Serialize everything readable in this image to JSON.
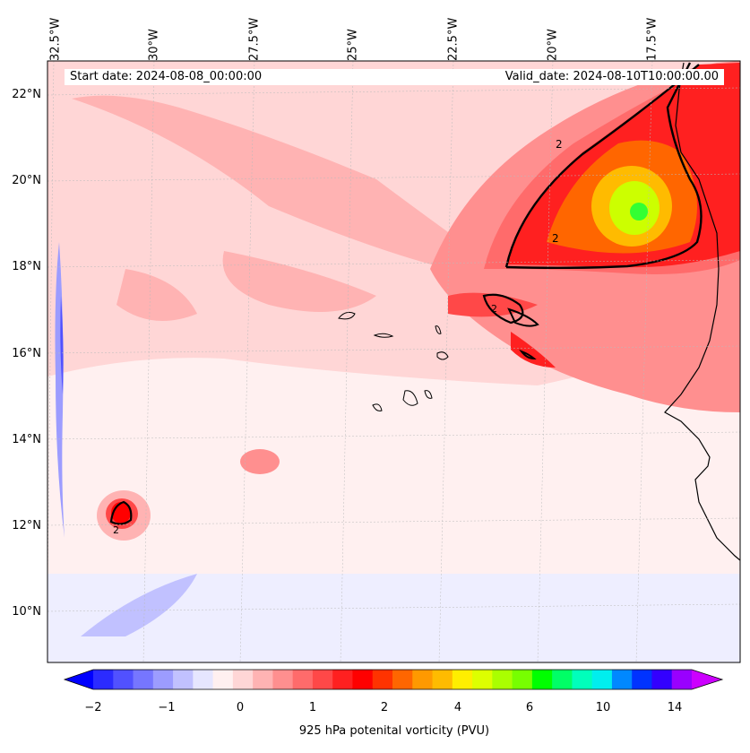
{
  "header": {
    "start_date": "Start date: 2024-08-08_00:00:00",
    "valid_date": "Valid_date: 2024-08-10T10:00:00.00"
  },
  "longitude_labels": [
    "32.5°W",
    "30°W",
    "27.5°W",
    "25°W",
    "22.5°W",
    "20°W",
    "17.5°W"
  ],
  "latitude_labels": [
    "22°N",
    "20°N",
    "18°N",
    "16°N",
    "14°N",
    "12°N",
    "10°N"
  ],
  "contour_labels": [
    "2",
    "2",
    "2",
    "2"
  ],
  "colorbar": {
    "label": "925 hPa potenital vorticity (PVU)",
    "ticks": [
      "−2",
      "−1",
      "0",
      "1",
      "2",
      "4",
      "6",
      "10",
      "14"
    ],
    "colors": [
      "#0000ff",
      "#2b2bff",
      "#5151ff",
      "#7676ff",
      "#9c9cff",
      "#c1c1ff",
      "#e6e6ff",
      "#fff0f0",
      "#ffd6d6",
      "#ffb3b3",
      "#ff8f8f",
      "#ff6b6b",
      "#ff4848",
      "#ff2020",
      "#ff0000",
      "#ff3300",
      "#ff6600",
      "#ff9900",
      "#ffbb00",
      "#ffee00",
      "#ddff00",
      "#aaff00",
      "#77ff00",
      "#00ff00",
      "#00ff66",
      "#00ffbb",
      "#00eeee",
      "#0088ff",
      "#0033ff",
      "#3300ff",
      "#9900ff",
      "#cc00ff"
    ]
  },
  "map_colors": {
    "background": "#fff0f0",
    "land_outline": "#000000"
  }
}
